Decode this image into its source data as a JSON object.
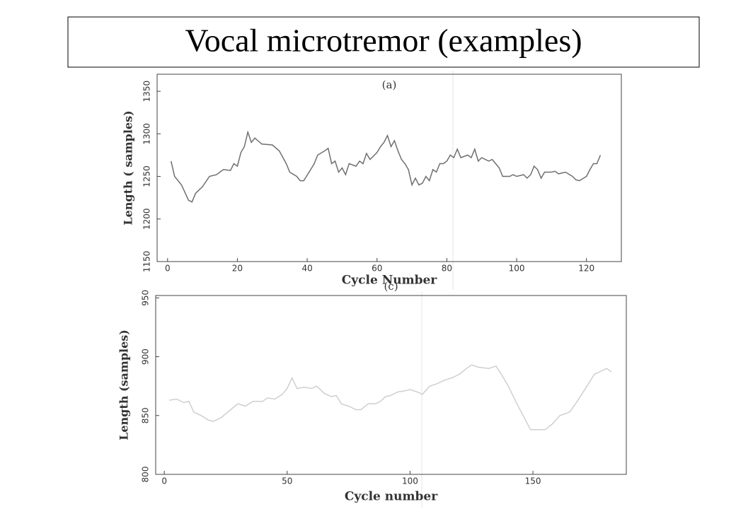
{
  "title": "Vocal microtremor (examples)",
  "chart_data": [
    {
      "type": "line",
      "title": "(a)",
      "x_label": "Cycle Number",
      "y_label": "Length ( samples)",
      "color": "#6f6f6f",
      "x": [
        1,
        2,
        4,
        6,
        7,
        8,
        10,
        12,
        14,
        16,
        18,
        19,
        20,
        21,
        22,
        23,
        24,
        25,
        27,
        30,
        32,
        34,
        35,
        37,
        38,
        39,
        41,
        42,
        43,
        45,
        46,
        47,
        48,
        49,
        50,
        51,
        52,
        54,
        55,
        56,
        57,
        58,
        60,
        61,
        62,
        63,
        64,
        65,
        66,
        67,
        68,
        69,
        70,
        71,
        72,
        73,
        74,
        75,
        76,
        77,
        78,
        79,
        80,
        81,
        82,
        83,
        84,
        86,
        87,
        88,
        89,
        90,
        92,
        93,
        94,
        95,
        96,
        98,
        99,
        100,
        102,
        103,
        104,
        105,
        106,
        107,
        108,
        110,
        111,
        112,
        114,
        116,
        117,
        118,
        120,
        121,
        122,
        123,
        124
      ],
      "values": [
        1268,
        1250,
        1240,
        1222,
        1220,
        1230,
        1238,
        1250,
        1252,
        1258,
        1257,
        1265,
        1262,
        1278,
        1285,
        1302,
        1290,
        1295,
        1288,
        1287,
        1280,
        1265,
        1255,
        1250,
        1245,
        1245,
        1258,
        1265,
        1275,
        1280,
        1283,
        1265,
        1268,
        1255,
        1260,
        1252,
        1265,
        1262,
        1268,
        1265,
        1277,
        1270,
        1278,
        1285,
        1290,
        1298,
        1285,
        1292,
        1280,
        1270,
        1265,
        1258,
        1240,
        1248,
        1240,
        1242,
        1250,
        1245,
        1258,
        1255,
        1265,
        1265,
        1268,
        1275,
        1272,
        1282,
        1272,
        1275,
        1272,
        1282,
        1268,
        1272,
        1268,
        1270,
        1265,
        1260,
        1250,
        1250,
        1252,
        1250,
        1252,
        1248,
        1252,
        1262,
        1258,
        1248,
        1255,
        1255,
        1256,
        1253,
        1255,
        1250,
        1246,
        1245,
        1250,
        1258,
        1265,
        1265,
        1275
      ],
      "xlim": [
        -3,
        130
      ],
      "xticks": [
        0,
        20,
        40,
        60,
        80,
        100,
        120
      ],
      "ylim": [
        1150,
        1370
      ],
      "yticks": [
        1150,
        1200,
        1250,
        1300,
        1350
      ]
    },
    {
      "type": "line",
      "title": "(c)",
      "x_label": "Cycle number",
      "y_label": "Length (samples)",
      "color": "#cfcfcf",
      "x": [
        2,
        5,
        8,
        10,
        12,
        15,
        18,
        20,
        23,
        27,
        30,
        33,
        36,
        40,
        42,
        45,
        48,
        50,
        52,
        54,
        57,
        60,
        62,
        65,
        68,
        70,
        72,
        75,
        78,
        80,
        83,
        86,
        88,
        90,
        92,
        95,
        98,
        100,
        103,
        105,
        108,
        111,
        114,
        117,
        120,
        123,
        125,
        128,
        132,
        135,
        138,
        140,
        143,
        146,
        149,
        152,
        155,
        158,
        161,
        165,
        168,
        172,
        175,
        178,
        180,
        182
      ],
      "values": [
        863,
        864,
        861,
        862,
        853,
        850,
        846,
        845,
        848,
        855,
        860,
        858,
        862,
        862,
        865,
        864,
        868,
        873,
        882,
        873,
        874,
        873,
        875,
        869,
        866,
        867,
        860,
        858,
        855,
        855,
        860,
        860,
        862,
        866,
        867,
        870,
        871,
        872,
        870,
        868,
        875,
        877,
        880,
        882,
        885,
        890,
        893,
        891,
        890,
        892,
        882,
        875,
        862,
        850,
        838,
        838,
        838,
        843,
        850,
        853,
        862,
        875,
        885,
        888,
        890,
        887
      ],
      "xlim": [
        -3.5,
        188
      ],
      "xticks": [
        0,
        50,
        100,
        150
      ],
      "ylim": [
        800,
        952
      ],
      "yticks": [
        800,
        850,
        900,
        950
      ]
    }
  ]
}
